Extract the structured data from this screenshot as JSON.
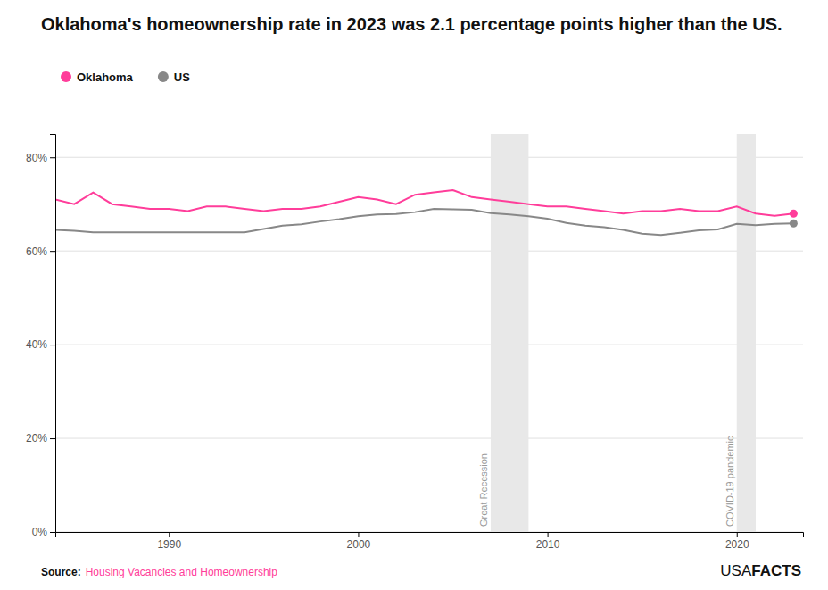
{
  "chart_data": {
    "type": "line",
    "title": "Oklahoma's homeownership rate in 2023 was 2.1 percentage points higher than the US.",
    "x": [
      1984,
      1985,
      1986,
      1987,
      1988,
      1989,
      1990,
      1991,
      1992,
      1993,
      1994,
      1995,
      1996,
      1997,
      1998,
      1999,
      2000,
      2001,
      2002,
      2003,
      2004,
      2005,
      2006,
      2007,
      2008,
      2009,
      2010,
      2011,
      2012,
      2013,
      2014,
      2015,
      2016,
      2017,
      2018,
      2019,
      2020,
      2021,
      2022,
      2023
    ],
    "series": [
      {
        "name": "Oklahoma",
        "color": "#FF3D9A",
        "values": [
          71.0,
          70.0,
          72.5,
          70.0,
          69.5,
          69.0,
          69.0,
          68.5,
          69.5,
          69.5,
          69.0,
          68.5,
          69.0,
          69.0,
          69.5,
          70.5,
          71.5,
          71.0,
          70.0,
          72.0,
          72.5,
          73.0,
          71.5,
          71.0,
          70.5,
          70.0,
          69.5,
          69.5,
          69.0,
          68.5,
          68.0,
          68.5,
          68.5,
          69.0,
          68.5,
          68.5,
          69.5,
          68.0,
          67.5,
          68.0
        ]
      },
      {
        "name": "US",
        "color": "#888888",
        "values": [
          64.5,
          64.3,
          64.0,
          64.0,
          64.0,
          64.0,
          64.0,
          64.0,
          64.0,
          64.0,
          64.0,
          64.7,
          65.4,
          65.7,
          66.3,
          66.8,
          67.4,
          67.8,
          67.9,
          68.3,
          69.0,
          68.9,
          68.8,
          68.1,
          67.8,
          67.4,
          66.9,
          66.0,
          65.4,
          65.1,
          64.5,
          63.7,
          63.4,
          63.9,
          64.4,
          64.6,
          65.8,
          65.5,
          65.8,
          65.9
        ]
      }
    ],
    "xlim": [
      1984,
      2023.5
    ],
    "xticks": [
      1990,
      2000,
      2010,
      2020
    ],
    "ylim": [
      0,
      85
    ],
    "yticks": [
      {
        "value": 0,
        "label": "0%"
      },
      {
        "value": 20,
        "label": "20%"
      },
      {
        "value": 40,
        "label": "40%"
      },
      {
        "value": 60,
        "label": "60%"
      },
      {
        "value": 80,
        "label": "80%"
      }
    ],
    "grid": true,
    "legend": "top-left",
    "annotations": [
      {
        "text": "Great Recession",
        "x_range": [
          2007,
          2009
        ]
      },
      {
        "text": "COVID-19 pandemic",
        "x_range": [
          2020,
          2021
        ]
      }
    ],
    "source_label": "Source:",
    "source": "Housing Vacancies and Homeownership",
    "credit": [
      "USA",
      "FACTS"
    ]
  }
}
